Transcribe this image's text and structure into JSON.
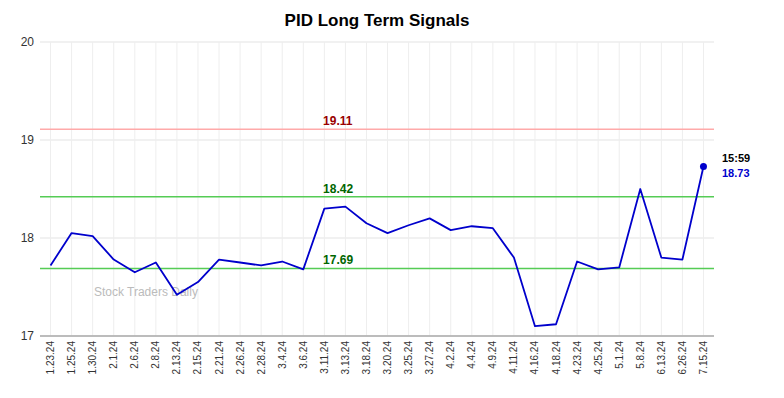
{
  "chart_data": {
    "type": "line",
    "title": "PID Long Term Signals",
    "categories": [
      "1.23.24",
      "1.25.24",
      "1.30.24",
      "2.1.24",
      "2.6.24",
      "2.8.24",
      "2.13.24",
      "2.15.24",
      "2.21.24",
      "2.26.24",
      "2.28.24",
      "3.4.24",
      "3.6.24",
      "3.11.24",
      "3.13.24",
      "3.18.24",
      "3.20.24",
      "3.25.24",
      "3.27.24",
      "4.2.24",
      "4.4.24",
      "4.9.24",
      "4.11.24",
      "4.16.24",
      "4.18.24",
      "4.23.24",
      "4.25.24",
      "5.1.24",
      "5.8.24",
      "6.13.24",
      "6.26.24",
      "7.15.24"
    ],
    "values": [
      17.72,
      18.05,
      18.02,
      17.78,
      17.65,
      17.75,
      17.42,
      17.55,
      17.78,
      17.75,
      17.72,
      17.76,
      17.68,
      18.3,
      18.32,
      18.15,
      18.05,
      18.13,
      18.2,
      18.08,
      18.12,
      18.1,
      17.8,
      17.1,
      17.12,
      17.76,
      17.68,
      17.7,
      18.5,
      17.8,
      17.78,
      18.73
    ],
    "color": "#0000cc",
    "ylim": [
      17,
      20
    ],
    "yticks": [
      17,
      18,
      19,
      20
    ],
    "grid": true,
    "reference_lines": [
      {
        "value": 19.11,
        "label": "19.11",
        "color": "#ffaaaa",
        "label_color": "#990000"
      },
      {
        "value": 18.42,
        "label": "18.42",
        "color": "#55cc55",
        "label_color": "#006600"
      },
      {
        "value": 17.69,
        "label": "17.69",
        "color": "#55cc55",
        "label_color": "#006600"
      }
    ],
    "last_point": {
      "time_label": "15:59",
      "value_label": "18.73",
      "color": "#0000cc",
      "marker": "circle"
    },
    "watermark": "Stock Traders Daily",
    "watermark_color": "#bbbbbb"
  }
}
